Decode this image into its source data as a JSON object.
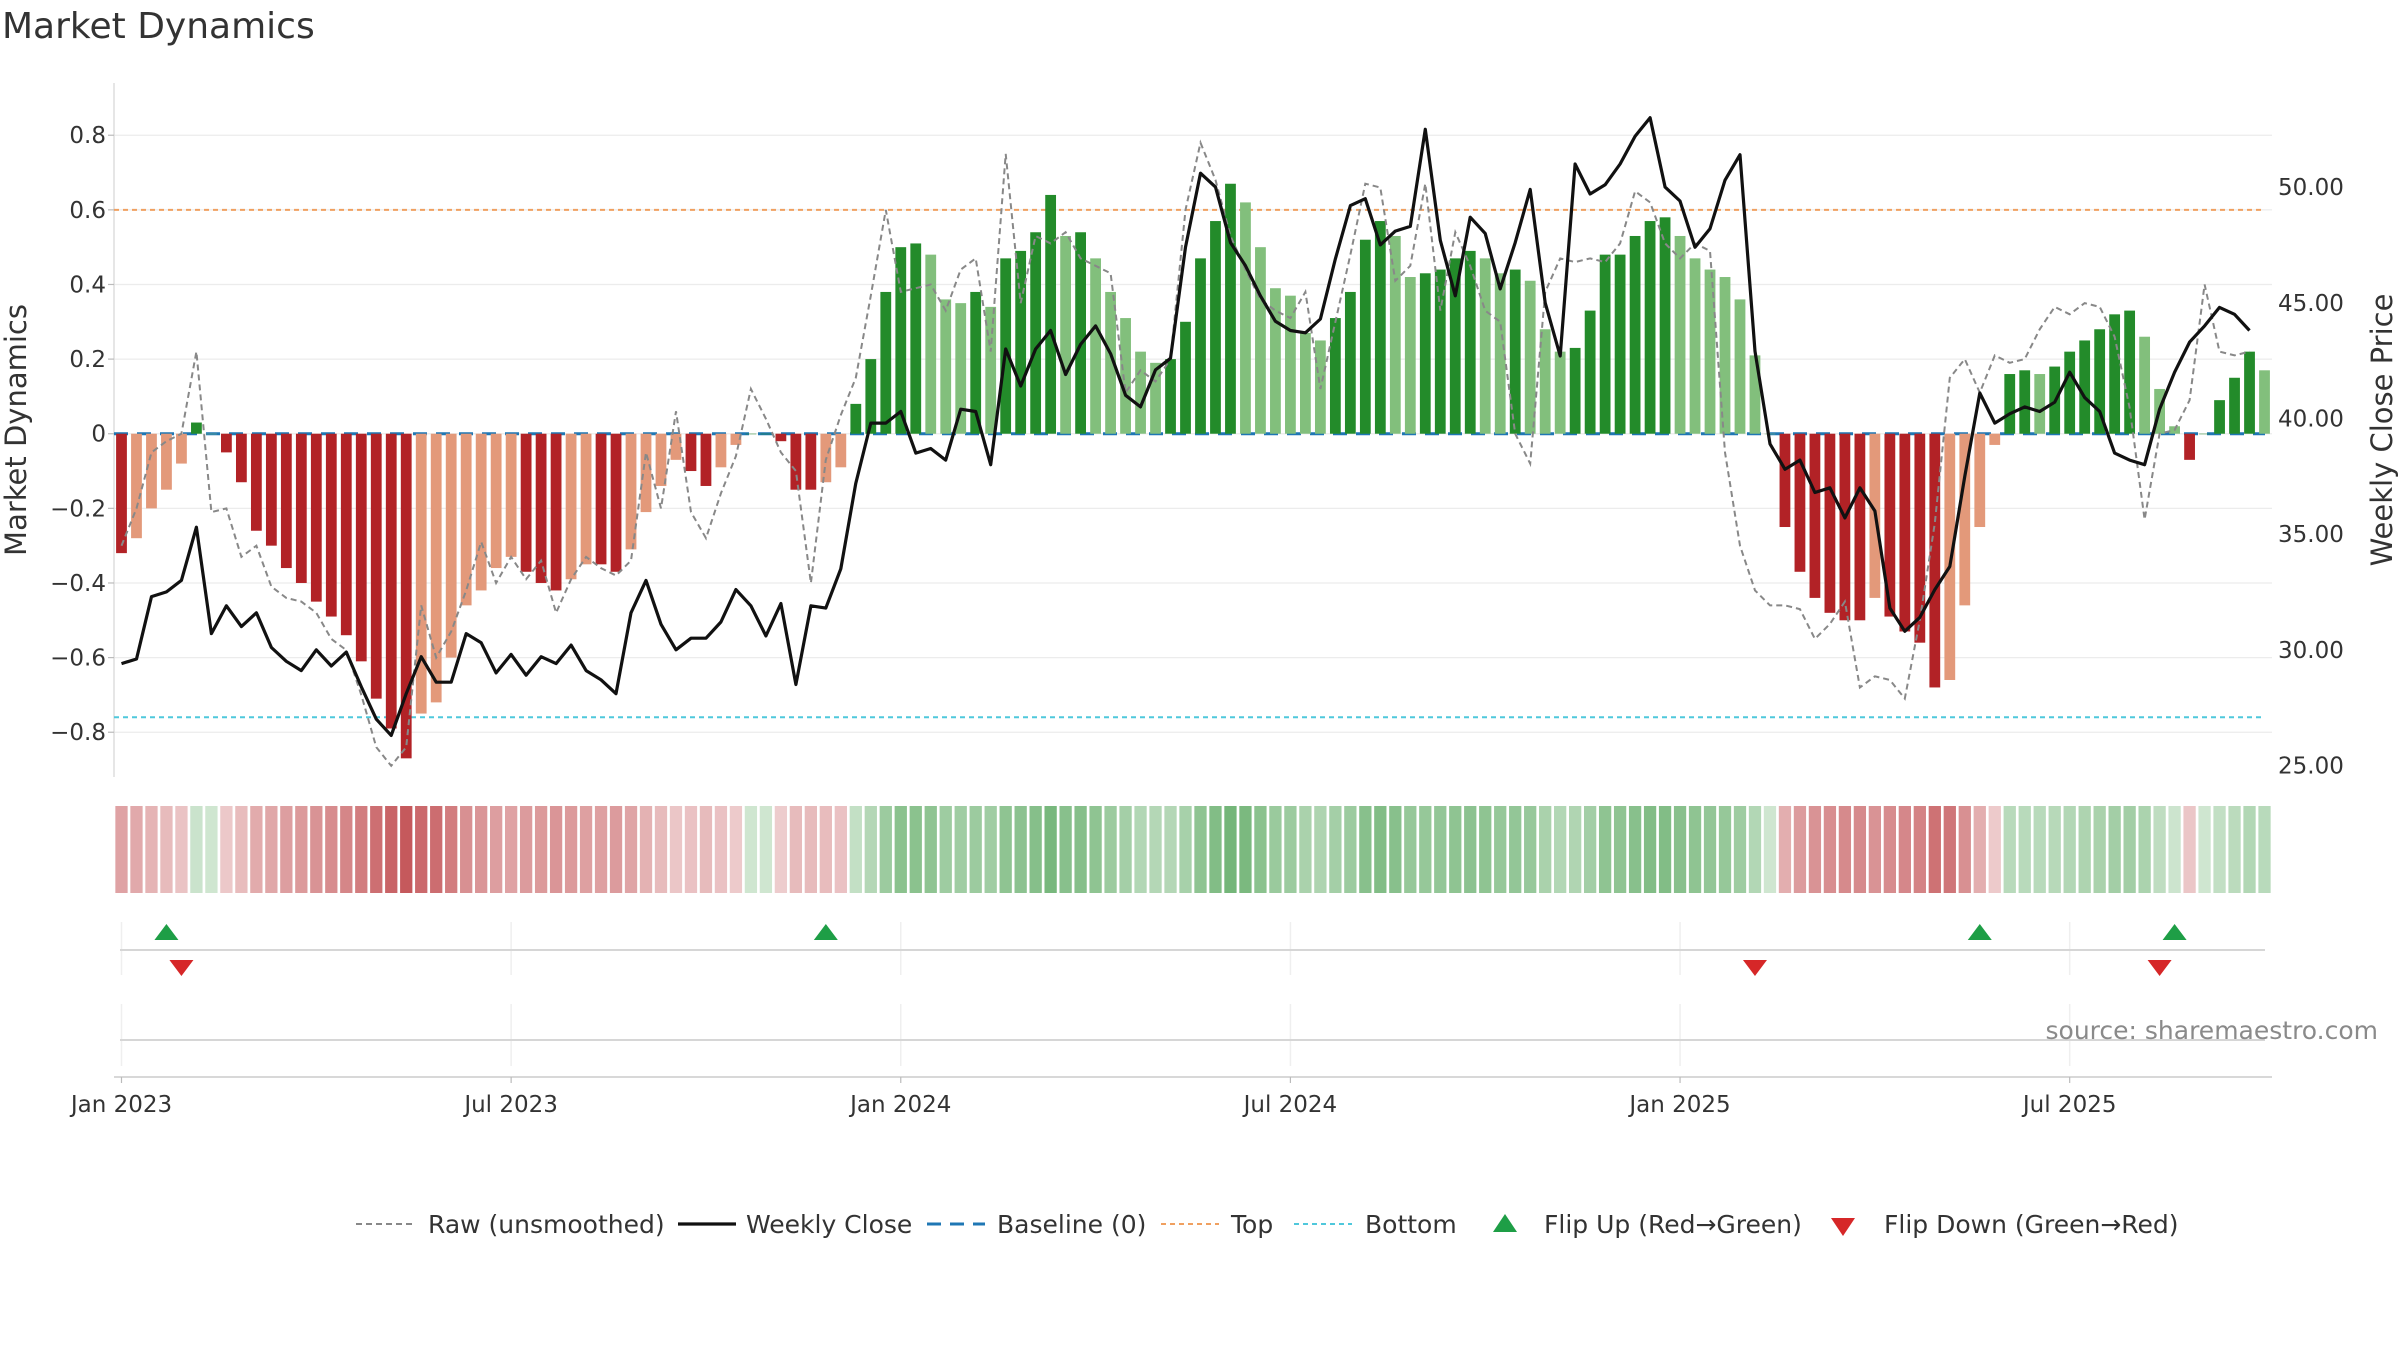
{
  "title": "Market Dynamics",
  "source": "source: sharemaestro.com",
  "chart_data": {
    "type": "bar",
    "title": "Market Dynamics",
    "ylabel_left": "Market Dynamics",
    "ylabel_right": "Weekly Close Price",
    "ylim_left": [
      -0.92,
      0.94
    ],
    "ylim_right": [
      24.5,
      54.5
    ],
    "left_ticks": [
      "0.8",
      "0.6",
      "0.4",
      "0.2",
      "0",
      "−0.2",
      "−0.4",
      "−0.6",
      "−0.8"
    ],
    "left_tick_values": [
      0.8,
      0.6,
      0.4,
      0.2,
      0,
      -0.2,
      -0.4,
      -0.6,
      -0.8
    ],
    "right_ticks": [
      "50.00",
      "45.00",
      "40.00",
      "35.00",
      "30.00",
      "25.00"
    ],
    "right_tick_values": [
      50,
      45,
      40,
      35,
      30,
      25
    ],
    "x_tick_labels": [
      "Jan 2023",
      "Jul 2023",
      "Jan 2024",
      "Jul 2024",
      "Jan 2025",
      "Jul 2025"
    ],
    "x_tick_weeks": [
      0,
      26,
      52,
      78,
      104,
      130
    ],
    "first_week": "2023-01-02",
    "top_level": 0.6,
    "bottom_level": -0.76,
    "grid": true,
    "legend_placement": "bottom",
    "colors": {
      "strong_green": "#238b2a",
      "weak_green": "#82bf7c",
      "strong_red": "#b22226",
      "weak_red": "#e3997a",
      "close": "#111111",
      "raw": "#888888",
      "baseline": "#1f77b4",
      "top": "#f0a060",
      "bottom": "#4fc8dc",
      "flip_up": "#1e9e46",
      "flip_down": "#d62728"
    },
    "dynamics": [
      -0.32,
      -0.28,
      -0.2,
      -0.15,
      -0.08,
      0.03,
      0.0,
      -0.05,
      -0.13,
      -0.26,
      -0.3,
      -0.36,
      -0.4,
      -0.45,
      -0.49,
      -0.54,
      -0.61,
      -0.71,
      -0.79,
      -0.87,
      -0.75,
      -0.72,
      -0.6,
      -0.46,
      -0.42,
      -0.36,
      -0.33,
      -0.37,
      -0.4,
      -0.42,
      -0.39,
      -0.35,
      -0.35,
      -0.37,
      -0.31,
      -0.21,
      -0.14,
      -0.07,
      -0.1,
      -0.14,
      -0.09,
      -0.03,
      0.0,
      0.0,
      -0.02,
      -0.15,
      -0.15,
      -0.13,
      -0.09,
      0.08,
      0.2,
      0.38,
      0.5,
      0.51,
      0.48,
      0.36,
      0.35,
      0.38,
      0.34,
      0.47,
      0.49,
      0.54,
      0.64,
      0.53,
      0.54,
      0.47,
      0.38,
      0.31,
      0.22,
      0.19,
      0.2,
      0.3,
      0.47,
      0.57,
      0.67,
      0.62,
      0.5,
      0.39,
      0.37,
      0.27,
      0.25,
      0.31,
      0.38,
      0.52,
      0.57,
      0.53,
      0.42,
      0.43,
      0.44,
      0.47,
      0.49,
      0.47,
      0.43,
      0.44,
      0.41,
      0.28,
      0.22,
      0.23,
      0.33,
      0.48,
      0.48,
      0.53,
      0.57,
      0.58,
      0.53,
      0.47,
      0.44,
      0.42,
      0.36,
      0.21,
      0.0,
      -0.25,
      -0.37,
      -0.44,
      -0.48,
      -0.5,
      -0.5,
      -0.44,
      -0.49,
      -0.53,
      -0.56,
      -0.68,
      -0.66,
      -0.46,
      -0.25,
      -0.03,
      0.16,
      0.17,
      0.16,
      0.18,
      0.22,
      0.25,
      0.28,
      0.32,
      0.33,
      0.26,
      0.12,
      0.02,
      -0.07,
      0.0,
      0.09,
      0.15,
      0.22,
      0.17
    ],
    "raw": [
      -0.3,
      -0.2,
      -0.05,
      -0.02,
      0.0,
      0.22,
      -0.21,
      -0.2,
      -0.33,
      -0.3,
      -0.41,
      -0.44,
      -0.45,
      -0.48,
      -0.55,
      -0.58,
      -0.7,
      -0.84,
      -0.89,
      -0.84,
      -0.46,
      -0.6,
      -0.53,
      -0.42,
      -0.29,
      -0.4,
      -0.33,
      -0.39,
      -0.34,
      -0.48,
      -0.39,
      -0.33,
      -0.36,
      -0.38,
      -0.34,
      -0.05,
      -0.2,
      0.06,
      -0.21,
      -0.28,
      -0.16,
      -0.06,
      0.12,
      0.04,
      -0.05,
      -0.1,
      -0.4,
      -0.07,
      0.05,
      0.15,
      0.37,
      0.6,
      0.38,
      0.39,
      0.4,
      0.33,
      0.44,
      0.47,
      0.22,
      0.75,
      0.35,
      0.53,
      0.51,
      0.54,
      0.47,
      0.45,
      0.43,
      0.11,
      0.17,
      0.14,
      0.2,
      0.6,
      0.78,
      0.68,
      0.53,
      0.44,
      0.36,
      0.33,
      0.31,
      0.38,
      0.12,
      0.3,
      0.48,
      0.67,
      0.66,
      0.41,
      0.45,
      0.67,
      0.33,
      0.54,
      0.45,
      0.33,
      0.3,
      0.0,
      -0.08,
      0.38,
      0.47,
      0.46,
      0.47,
      0.46,
      0.51,
      0.65,
      0.62,
      0.51,
      0.47,
      0.51,
      0.49,
      -0.05,
      -0.3,
      -0.42,
      -0.46,
      -0.46,
      -0.47,
      -0.55,
      -0.51,
      -0.45,
      -0.68,
      -0.65,
      -0.66,
      -0.71,
      -0.5,
      -0.24,
      0.15,
      0.2,
      0.11,
      0.21,
      0.19,
      0.2,
      0.28,
      0.34,
      0.32,
      0.35,
      0.34,
      0.26,
      0.07,
      -0.23,
      0.0,
      0.01,
      0.09,
      0.4,
      0.22,
      0.21,
      0.22
    ],
    "close": [
      29.4,
      29.6,
      32.3,
      32.5,
      33.0,
      35.3,
      30.7,
      31.9,
      31.0,
      31.6,
      30.1,
      29.5,
      29.1,
      30.0,
      29.3,
      29.9,
      28.4,
      27.0,
      26.3,
      28.1,
      29.7,
      28.6,
      28.6,
      30.7,
      30.3,
      29.0,
      29.8,
      28.9,
      29.7,
      29.4,
      30.2,
      29.1,
      28.7,
      28.1,
      31.6,
      33.0,
      31.1,
      30.0,
      30.5,
      30.5,
      31.2,
      32.6,
      31.9,
      30.6,
      32.0,
      28.5,
      31.9,
      31.8,
      33.5,
      37.2,
      39.8,
      39.8,
      40.3,
      38.5,
      38.7,
      38.2,
      40.4,
      40.3,
      38.0,
      43.0,
      41.4,
      43.0,
      43.8,
      41.9,
      43.2,
      44.0,
      42.8,
      41.0,
      40.5,
      42.1,
      42.6,
      47.4,
      50.6,
      50.0,
      47.6,
      46.6,
      45.3,
      44.2,
      43.8,
      43.7,
      44.3,
      46.9,
      49.2,
      49.5,
      47.5,
      48.1,
      48.3,
      52.5,
      47.7,
      45.3,
      48.7,
      48.0,
      45.6,
      47.6,
      49.9,
      45.0,
      42.7,
      51.0,
      49.7,
      50.1,
      51.0,
      52.2,
      53.0,
      50.0,
      49.4,
      47.4,
      48.2,
      50.3,
      51.4,
      42.9,
      38.9,
      37.8,
      38.2,
      36.8,
      37.0,
      35.7,
      37.0,
      36.0,
      31.8,
      30.8,
      31.4,
      32.6,
      33.6,
      37.5,
      41.1,
      39.8,
      40.2,
      40.5,
      40.3,
      40.7,
      42.0,
      40.9,
      40.3,
      38.5,
      38.2,
      38.0,
      40.4,
      42.0,
      43.3,
      44.0,
      44.8,
      44.5,
      43.8
    ],
    "flip_up_weeks": [
      3,
      47,
      124,
      137
    ],
    "flip_down_weeks": [
      4,
      109,
      136
    ],
    "legend": [
      "Raw (unsmoothed)",
      "Weekly Close",
      "Baseline (0)",
      "Top",
      "Bottom",
      "Flip Up (Red→Green)",
      "Flip Down (Green→Red)"
    ]
  }
}
